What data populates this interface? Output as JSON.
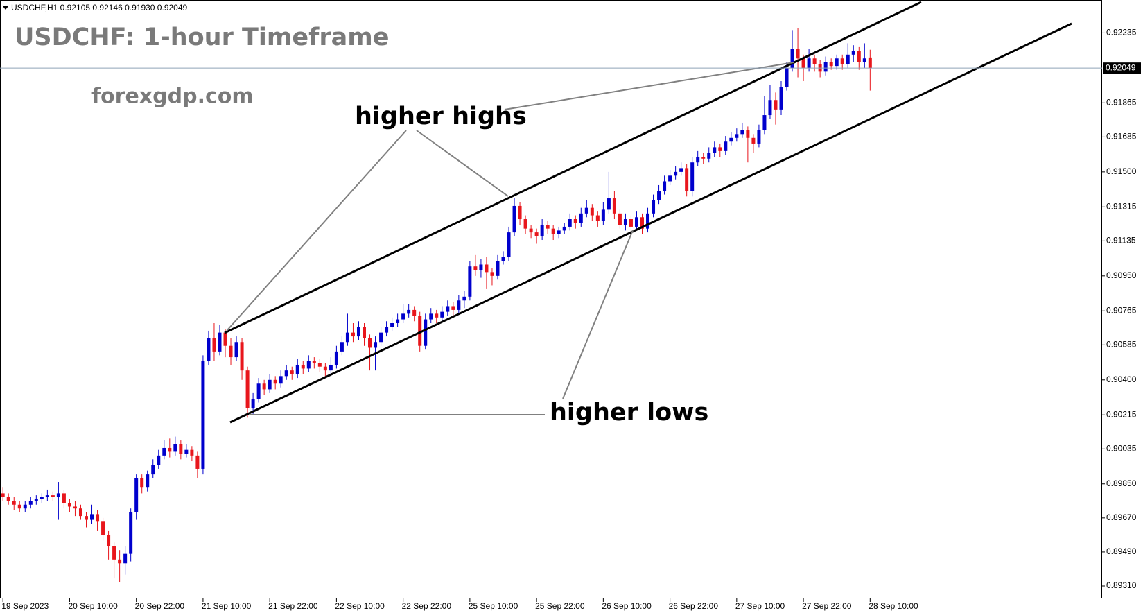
{
  "header": "USDCHF,H1  0.92105 0.92146 0.91930 0.92049",
  "title": "USDCHF: 1-hour Timeframe",
  "watermark": "forexgdp.com",
  "annotations": [
    "higher highs",
    "higher lows"
  ],
  "chart_data": {
    "type": "candlestick",
    "up_color": "#0000cd",
    "down_color": "#e8161c",
    "grid": false,
    "ylim": [
      0.89244,
      0.92409
    ],
    "yticks": [
      {
        "value": 0.92235,
        "label": "0.92235"
      },
      {
        "value": 0.91865,
        "label": "0.91865"
      },
      {
        "value": 0.91685,
        "label": "0.91685"
      },
      {
        "value": 0.915,
        "label": "0.91500"
      },
      {
        "value": 0.91315,
        "label": "0.91315"
      },
      {
        "value": 0.91135,
        "label": "0.91135"
      },
      {
        "value": 0.9095,
        "label": "0.90950"
      },
      {
        "value": 0.90765,
        "label": "0.90765"
      },
      {
        "value": 0.90585,
        "label": "0.90585"
      },
      {
        "value": 0.904,
        "label": "0.90400"
      },
      {
        "value": 0.90215,
        "label": "0.90215"
      },
      {
        "value": 0.90035,
        "label": "0.90035"
      },
      {
        "value": 0.8985,
        "label": "0.89850"
      },
      {
        "value": 0.8967,
        "label": "0.89670"
      },
      {
        "value": 0.8949,
        "label": "0.89490"
      },
      {
        "value": 0.8931,
        "label": "0.89310"
      }
    ],
    "current_price": {
      "value": 0.92049,
      "label": "0.92049"
    },
    "categories": [
      "19 Sep 2023",
      null,
      null,
      null,
      null,
      null,
      null,
      null,
      null,
      null,
      null,
      null,
      "20 Sep 10:00",
      null,
      null,
      null,
      null,
      null,
      null,
      null,
      null,
      null,
      null,
      null,
      "20 Sep 22:00",
      null,
      null,
      null,
      null,
      null,
      null,
      null,
      null,
      null,
      null,
      null,
      "21 Sep 10:00",
      null,
      null,
      null,
      null,
      null,
      null,
      null,
      null,
      null,
      null,
      null,
      "21 Sep 22:00",
      null,
      null,
      null,
      null,
      null,
      null,
      null,
      null,
      null,
      null,
      null,
      "22 Sep 10:00",
      null,
      null,
      null,
      null,
      null,
      null,
      null,
      null,
      null,
      null,
      null,
      "22 Sep 22:00",
      null,
      null,
      null,
      null,
      null,
      null,
      null,
      null,
      null,
      null,
      null,
      "25 Sep 10:00",
      null,
      null,
      null,
      null,
      null,
      null,
      null,
      null,
      null,
      null,
      null,
      "25 Sep 22:00",
      null,
      null,
      null,
      null,
      null,
      null,
      null,
      null,
      null,
      null,
      null,
      "26 Sep 10:00",
      null,
      null,
      null,
      null,
      null,
      null,
      null,
      null,
      null,
      null,
      null,
      "26 Sep 22:00",
      null,
      null,
      null,
      null,
      null,
      null,
      null,
      null,
      null,
      null,
      null,
      "27 Sep 10:00",
      null,
      null,
      null,
      null,
      null,
      null,
      null,
      null,
      null,
      null,
      null,
      "27 Sep 22:00",
      null,
      null,
      null,
      null,
      null,
      null,
      null,
      null,
      null,
      null,
      null,
      "28 Sep 10:00"
    ],
    "open": [
      0.898,
      0.8978,
      0.8976,
      0.8974,
      0.8972,
      0.8974,
      0.8976,
      0.8977,
      0.8978,
      0.8979,
      0.8978,
      0.898,
      0.8975,
      0.8973,
      0.8972,
      0.8968,
      0.8966,
      0.8969,
      0.8965,
      0.8958,
      0.8952,
      0.8945,
      0.8943,
      0.8948,
      0.897,
      0.8988,
      0.8983,
      0.899,
      0.8995,
      0.9,
      0.9004,
      0.9002,
      0.9006,
      0.9001,
      0.9003,
      0.9,
      0.8993,
      0.905,
      0.9062,
      0.9055,
      0.9065,
      0.9058,
      0.9052,
      0.906,
      0.9045,
      0.9025,
      0.903,
      0.9038,
      0.9035,
      0.904,
      0.9038,
      0.9042,
      0.9045,
      0.9043,
      0.9048,
      0.9046,
      0.905,
      0.9049,
      0.9047,
      0.9045,
      0.9048,
      0.9055,
      0.906,
      0.9065,
      0.9063,
      0.9068,
      0.9062,
      0.9057,
      0.906,
      0.9065,
      0.9068,
      0.907,
      0.9072,
      0.9075,
      0.9077,
      0.9074,
      0.9058,
      0.9072,
      0.9075,
      0.9073,
      0.9076,
      0.9079,
      0.9077,
      0.9082,
      0.9084,
      0.91,
      0.9098,
      0.9101,
      0.9097,
      0.9095,
      0.9103,
      0.9105,
      0.9118,
      0.9132,
      0.9125,
      0.912,
      0.9118,
      0.9116,
      0.9122,
      0.912,
      0.9117,
      0.9119,
      0.9121,
      0.9125,
      0.9123,
      0.9128,
      0.9131,
      0.9127,
      0.9124,
      0.913,
      0.9136,
      0.9128,
      0.9122,
      0.9125,
      0.9121,
      0.9126,
      0.912,
      0.9128,
      0.9135,
      0.914,
      0.9145,
      0.9148,
      0.915,
      0.9152,
      0.914,
      0.9155,
      0.9158,
      0.9157,
      0.916,
      0.9163,
      0.9161,
      0.9166,
      0.9168,
      0.917,
      0.9172,
      0.9168,
      0.9165,
      0.9172,
      0.918,
      0.9188,
      0.9183,
      0.9195,
      0.9205,
      0.9215,
      0.921,
      0.9205,
      0.921,
      0.9207,
      0.9203,
      0.9208,
      0.9206,
      0.921,
      0.9207,
      0.9212,
      0.9214,
      0.9208,
      0.92105
    ],
    "high": [
      0.8983,
      0.898,
      0.8978,
      0.8976,
      0.8976,
      0.8978,
      0.8979,
      0.898,
      0.8982,
      0.8981,
      0.8986,
      0.8982,
      0.8977,
      0.8976,
      0.8974,
      0.897,
      0.8974,
      0.8971,
      0.8967,
      0.896,
      0.8954,
      0.895,
      0.8952,
      0.8972,
      0.899,
      0.899,
      0.8992,
      0.8998,
      0.9003,
      0.9008,
      0.9009,
      0.901,
      0.9008,
      0.9006,
      0.9005,
      0.9002,
      0.9053,
      0.9066,
      0.907,
      0.9069,
      0.9067,
      0.9062,
      0.9063,
      0.9062,
      0.9047,
      0.9033,
      0.9041,
      0.904,
      0.9043,
      0.9042,
      0.9045,
      0.9048,
      0.9047,
      0.9051,
      0.905,
      0.9053,
      0.9052,
      0.9051,
      0.9049,
      0.9052,
      0.9058,
      0.9063,
      0.9075,
      0.907,
      0.9071,
      0.907,
      0.9064,
      0.9063,
      0.9068,
      0.9071,
      0.9073,
      0.9075,
      0.908,
      0.908,
      0.9079,
      0.9076,
      0.9075,
      0.9078,
      0.9077,
      0.9079,
      0.9082,
      0.9081,
      0.9085,
      0.9087,
      0.9103,
      0.9106,
      0.9104,
      0.9105,
      0.9099,
      0.9106,
      0.9108,
      0.9121,
      0.9136,
      0.9134,
      0.9127,
      0.9122,
      0.912,
      0.9125,
      0.9124,
      0.9122,
      0.9121,
      0.9123,
      0.9128,
      0.9127,
      0.9131,
      0.9135,
      0.9133,
      0.9129,
      0.9134,
      0.915,
      0.914,
      0.913,
      0.9128,
      0.9127,
      0.9129,
      0.9128,
      0.9131,
      0.9138,
      0.9143,
      0.9148,
      0.9151,
      0.9153,
      0.9155,
      0.9154,
      0.9158,
      0.9161,
      0.916,
      0.9163,
      0.9166,
      0.9165,
      0.9169,
      0.9171,
      0.9173,
      0.9176,
      0.9174,
      0.917,
      0.9175,
      0.919,
      0.9196,
      0.9192,
      0.9198,
      0.9208,
      0.9225,
      0.9226,
      0.9212,
      0.9215,
      0.9212,
      0.9209,
      0.9211,
      0.921,
      0.9212,
      0.9212,
      0.9218,
      0.9217,
      0.9216,
      0.9218,
      0.92146
    ],
    "low": [
      0.8976,
      0.8974,
      0.8971,
      0.897,
      0.897,
      0.8972,
      0.8974,
      0.8975,
      0.8976,
      0.8976,
      0.8966,
      0.8972,
      0.897,
      0.8968,
      0.8966,
      0.8962,
      0.8964,
      0.896,
      0.8955,
      0.8945,
      0.8935,
      0.8933,
      0.8937,
      0.8944,
      0.8966,
      0.898,
      0.8981,
      0.8988,
      0.8993,
      0.8998,
      0.8999,
      0.9,
      0.8998,
      0.8999,
      0.8997,
      0.8988,
      0.899,
      0.9048,
      0.905,
      0.9053,
      0.9052,
      0.9048,
      0.905,
      0.904,
      0.902,
      0.9022,
      0.9028,
      0.9032,
      0.9033,
      0.9035,
      0.9036,
      0.904,
      0.904,
      0.9041,
      0.9043,
      0.9044,
      0.9046,
      0.9044,
      0.9042,
      0.9043,
      0.9046,
      0.9053,
      0.9058,
      0.906,
      0.9061,
      0.9058,
      0.9045,
      0.9045,
      0.9058,
      0.9063,
      0.9066,
      0.9068,
      0.907,
      0.9073,
      0.9071,
      0.9055,
      0.9056,
      0.907,
      0.907,
      0.9071,
      0.9074,
      0.9074,
      0.9075,
      0.9078,
      0.9082,
      0.9095,
      0.9094,
      0.9088,
      0.909,
      0.9093,
      0.9101,
      0.9103,
      0.9116,
      0.9122,
      0.9117,
      0.9115,
      0.9112,
      0.9114,
      0.9117,
      0.9114,
      0.9115,
      0.9117,
      0.9119,
      0.912,
      0.9121,
      0.9126,
      0.9124,
      0.9121,
      0.9122,
      0.9128,
      0.9125,
      0.912,
      0.9119,
      0.9118,
      0.9119,
      0.9117,
      0.9118,
      0.9126,
      0.9133,
      0.9138,
      0.9143,
      0.9146,
      0.9148,
      0.9137,
      0.9137,
      0.9153,
      0.9154,
      0.9155,
      0.9158,
      0.9158,
      0.9159,
      0.9164,
      0.9166,
      0.9168,
      0.9155,
      0.916,
      0.9163,
      0.917,
      0.9178,
      0.9175,
      0.918,
      0.9193,
      0.9203,
      0.92,
      0.9198,
      0.9203,
      0.9203,
      0.92,
      0.9201,
      0.9204,
      0.9204,
      0.9204,
      0.9205,
      0.9208,
      0.9204,
      0.9205,
      0.9193
    ],
    "close": [
      0.8978,
      0.8976,
      0.8974,
      0.8972,
      0.8974,
      0.8976,
      0.8977,
      0.8978,
      0.8979,
      0.8978,
      0.898,
      0.8975,
      0.8973,
      0.8972,
      0.8968,
      0.8966,
      0.8969,
      0.8965,
      0.8958,
      0.8952,
      0.8945,
      0.8943,
      0.8948,
      0.897,
      0.8988,
      0.8983,
      0.899,
      0.8995,
      0.9,
      0.9004,
      0.9002,
      0.9006,
      0.9001,
      0.9003,
      0.9,
      0.8993,
      0.905,
      0.9062,
      0.9055,
      0.9065,
      0.9058,
      0.9052,
      0.906,
      0.9045,
      0.9025,
      0.903,
      0.9038,
      0.9035,
      0.904,
      0.9038,
      0.9042,
      0.9045,
      0.9043,
      0.9048,
      0.9046,
      0.905,
      0.9049,
      0.9047,
      0.9045,
      0.9048,
      0.9055,
      0.906,
      0.9065,
      0.9063,
      0.9068,
      0.9062,
      0.9057,
      0.906,
      0.9065,
      0.9068,
      0.907,
      0.9072,
      0.9075,
      0.9077,
      0.9074,
      0.9058,
      0.9072,
      0.9075,
      0.9073,
      0.9076,
      0.9079,
      0.9077,
      0.9082,
      0.9084,
      0.91,
      0.9098,
      0.9101,
      0.9097,
      0.9095,
      0.9103,
      0.9105,
      0.9118,
      0.9132,
      0.9125,
      0.912,
      0.9118,
      0.9116,
      0.9122,
      0.912,
      0.9117,
      0.9119,
      0.9121,
      0.9125,
      0.9123,
      0.9128,
      0.9131,
      0.9127,
      0.9124,
      0.913,
      0.9136,
      0.9128,
      0.9122,
      0.9125,
      0.9121,
      0.9126,
      0.912,
      0.9128,
      0.9135,
      0.914,
      0.9145,
      0.9148,
      0.915,
      0.9152,
      0.914,
      0.9155,
      0.9158,
      0.9157,
      0.916,
      0.9163,
      0.9161,
      0.9166,
      0.9168,
      0.917,
      0.9172,
      0.9168,
      0.9165,
      0.9172,
      0.918,
      0.9188,
      0.9183,
      0.9195,
      0.9205,
      0.9215,
      0.921,
      0.9205,
      0.921,
      0.9207,
      0.9203,
      0.9208,
      0.9206,
      0.921,
      0.9207,
      0.9212,
      0.9214,
      0.9208,
      0.921,
      0.92049
    ]
  }
}
